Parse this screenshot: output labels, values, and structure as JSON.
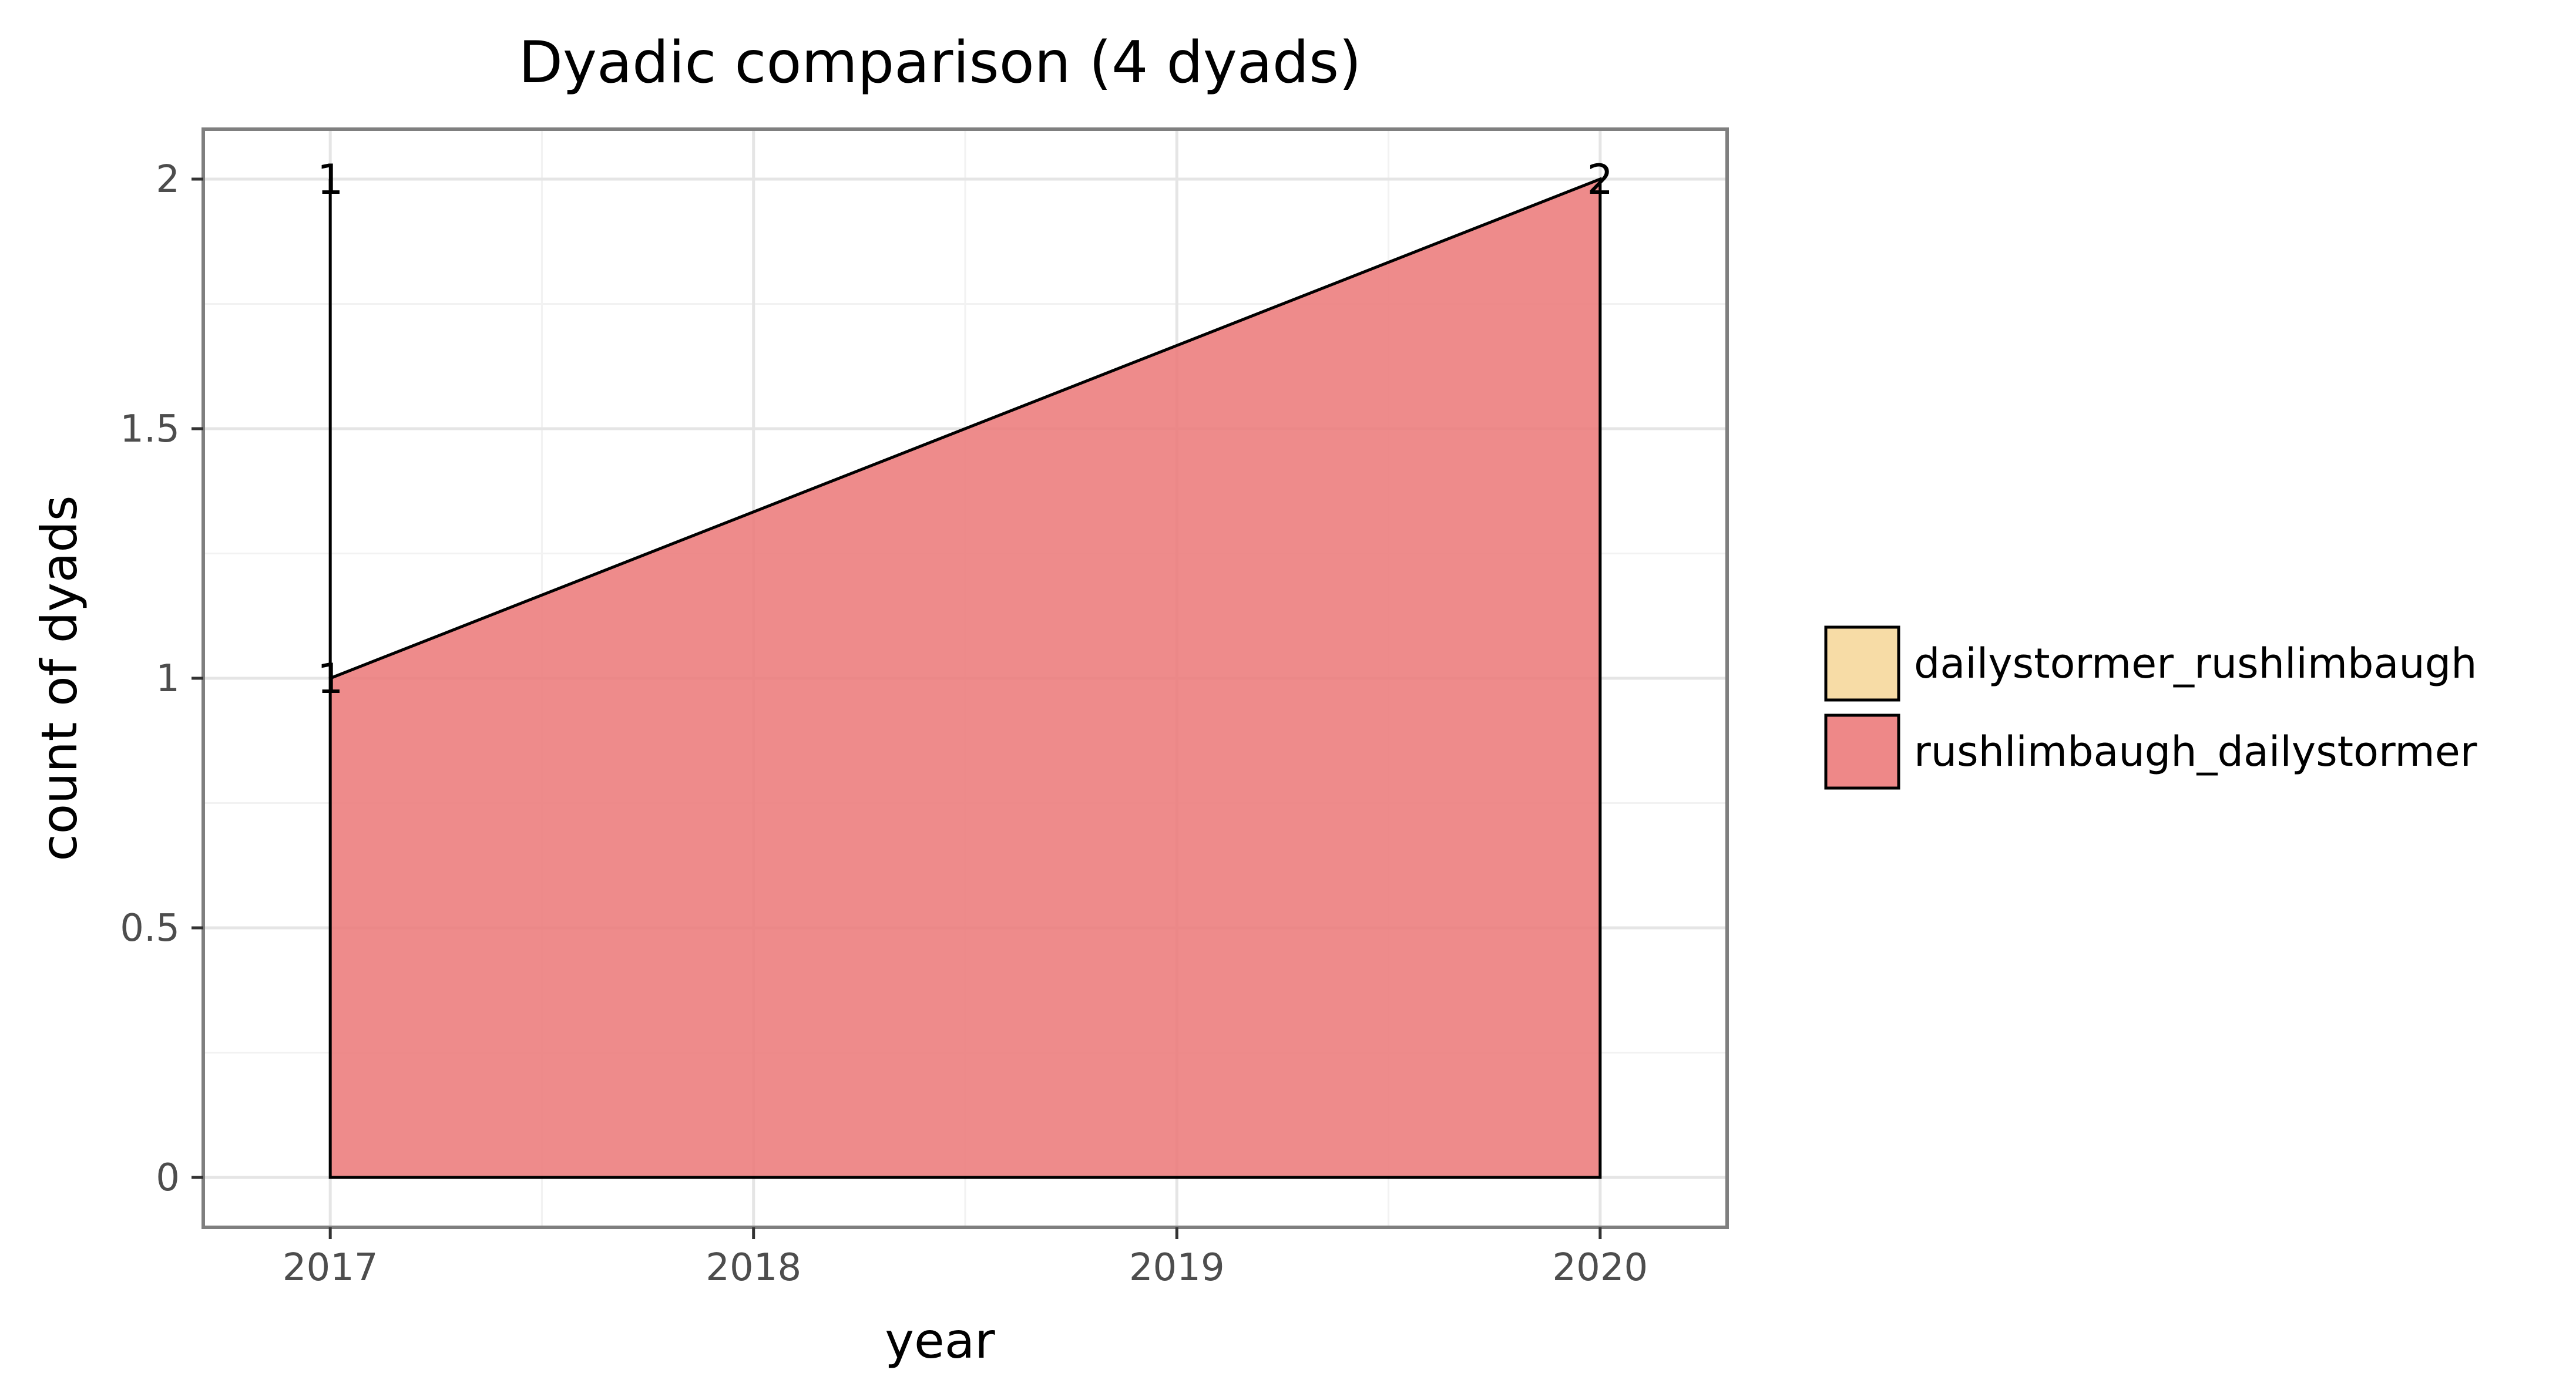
{
  "chart_data": {
    "type": "area",
    "title": "Dyadic comparison (4 dyads)",
    "xlabel": "year",
    "ylabel": "count of dyads",
    "x_ticks": [
      "2017",
      "2018",
      "2019",
      "2020"
    ],
    "y_ticks": [
      "0",
      "0.5",
      "1",
      "1.5",
      "2"
    ],
    "xlim": [
      2016.7,
      2020.3
    ],
    "ylim": [
      -0.1,
      2.1
    ],
    "grid": true,
    "legend_position": "right",
    "stacked": true,
    "series": [
      {
        "name": "dailystormer_rushlimbaugh",
        "color": "#f7dca6",
        "x": [
          2017
        ],
        "values": [
          1
        ]
      },
      {
        "name": "rushlimbaugh_dailystormer",
        "color": "#ec7b7b",
        "x": [
          2017,
          2020
        ],
        "values": [
          1,
          2
        ]
      }
    ],
    "data_labels": [
      {
        "x": 2017,
        "y": 2,
        "text": "1"
      },
      {
        "x": 2017,
        "y": 1,
        "text": "1"
      },
      {
        "x": 2020,
        "y": 2,
        "text": "2"
      }
    ]
  }
}
